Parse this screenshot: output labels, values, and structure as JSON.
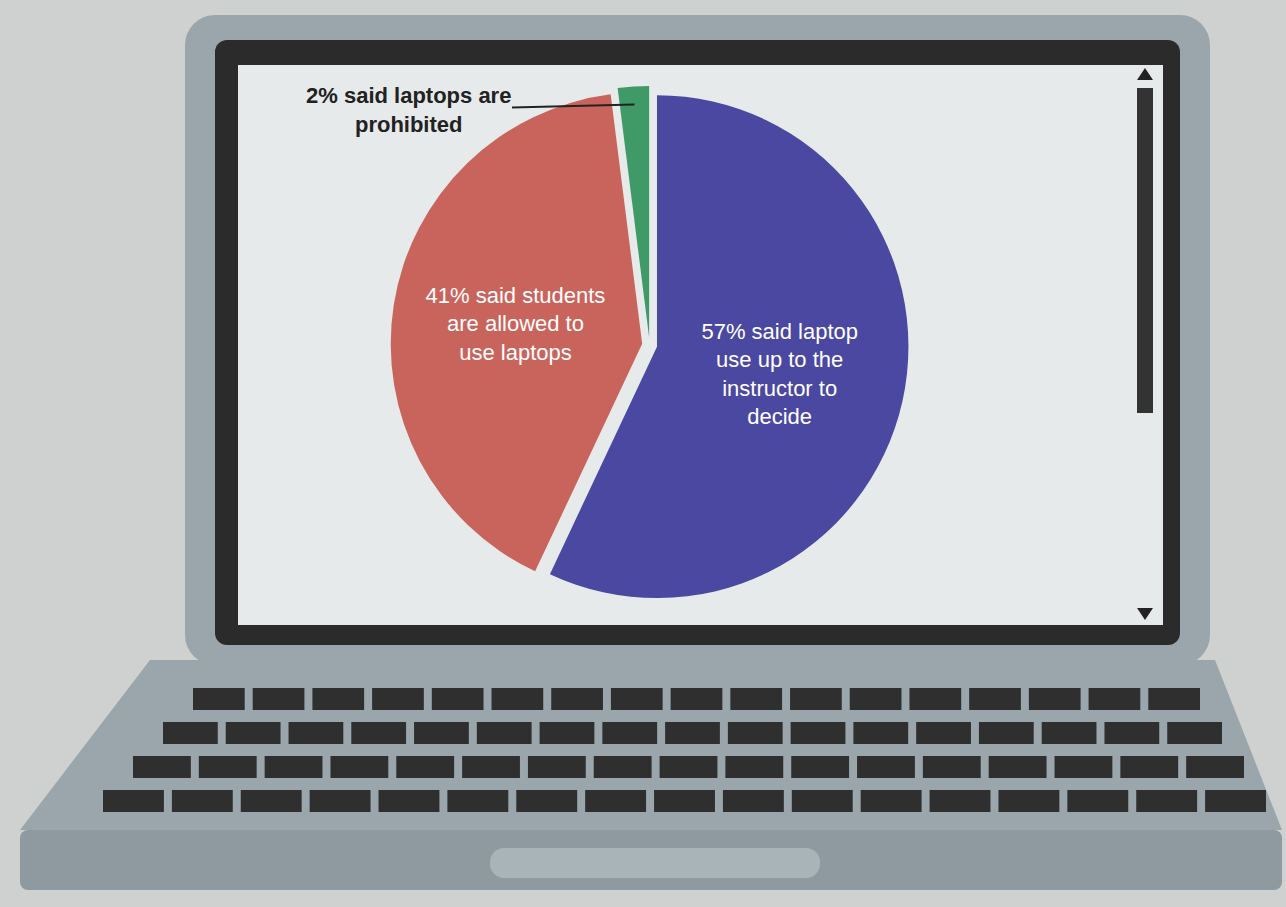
{
  "chart_data": {
    "type": "pie",
    "categories": [
      "57% said laptop use up to the instructor to decide",
      "41% said students are allowed to use laptops",
      "2% said laptops are prohibited"
    ],
    "values": [
      57,
      41,
      2
    ],
    "colors": [
      "#4a48a0",
      "#c9645c",
      "#3f9a68"
    ]
  }
}
